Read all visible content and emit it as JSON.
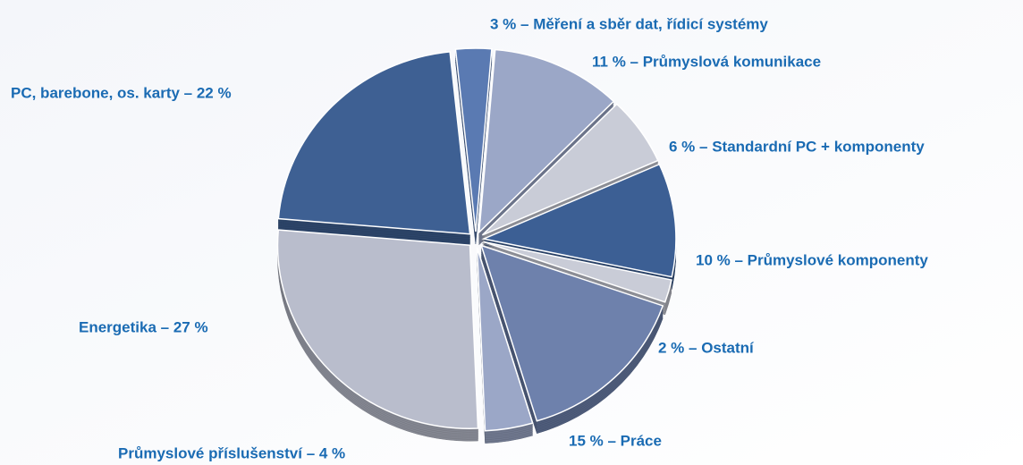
{
  "chart_data": {
    "type": "pie",
    "values": [
      3,
      11,
      6,
      10,
      2,
      15,
      4,
      27,
      22
    ],
    "value_labels": [
      "3 % – Měření a sběr dat, řídicí systémy",
      "11 % – Průmyslová komunikace",
      "6 % – Standardní PC + komponenty",
      "10 % – Průmyslové komponenty",
      "2 % – Ostatní",
      "15 % – Práce",
      "Průmyslové příslušenství – 4 %",
      "Energetika – 27 %",
      "PC, barebone, os. karty – 22 %"
    ],
    "colors": [
      "#5a7ab2",
      "#9ba7c7",
      "#c9ccd7",
      "#3c5f94",
      "#c9ccd7",
      "#6e81ac",
      "#9ba7c7",
      "#b9bdcc",
      "#3e6093"
    ]
  }
}
